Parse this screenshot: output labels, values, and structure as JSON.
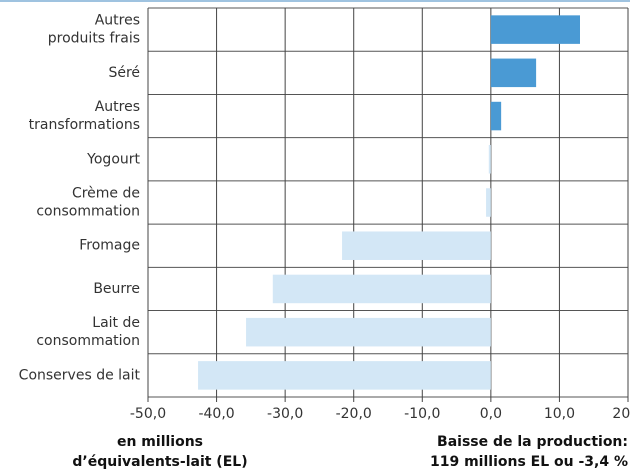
{
  "chart_data": {
    "type": "barh",
    "categories": [
      [
        "Autres",
        "produits frais"
      ],
      [
        "Séré"
      ],
      [
        "Autres",
        "transformations"
      ],
      [
        "Yogourt"
      ],
      [
        "Crème de",
        "consommation"
      ],
      [
        "Fromage"
      ],
      [
        "Beurre"
      ],
      [
        "Lait de",
        "consommation"
      ],
      [
        "Conserves de lait"
      ]
    ],
    "values": [
      13.0,
      6.6,
      1.5,
      -0.3,
      -0.7,
      -21.7,
      -31.8,
      -35.7,
      -42.7
    ],
    "positive_color": "#4a9ad4",
    "negative_color": "#d3e7f6",
    "xlim": [
      -50,
      20
    ],
    "xticks": [
      {
        "value": -50,
        "label": "-50,0"
      },
      {
        "value": -40,
        "label": "-40,0"
      },
      {
        "value": -30,
        "label": "-30,0"
      },
      {
        "value": -20,
        "label": "-20,0"
      },
      {
        "value": -10,
        "label": "-10,0"
      },
      {
        "value": 0,
        "label": "0,0"
      },
      {
        "value": 10,
        "label": "10,0"
      },
      {
        "value": 20,
        "label": "20,0"
      }
    ],
    "grid": true,
    "x_label": [
      "en millions",
      "d’équivalents-lait (EL)"
    ],
    "annotation": [
      "Baisse de la production:",
      "119 millions EL ou -3,4 %"
    ]
  }
}
